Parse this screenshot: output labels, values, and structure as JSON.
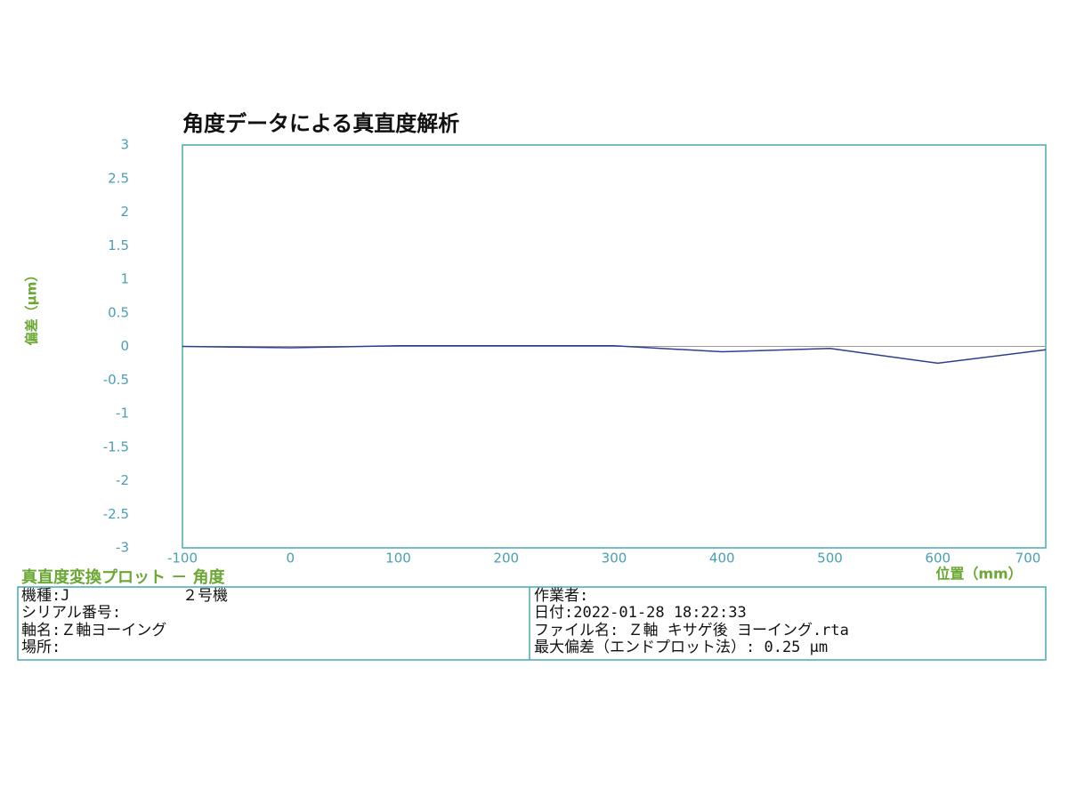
{
  "chart_data": {
    "type": "line",
    "title": "角度データによる真直度解析",
    "x_label": "位置（mm）",
    "y_label": "偏差（μm）",
    "x": [
      -100,
      0,
      100,
      200,
      300,
      400,
      500,
      600,
      700
    ],
    "series": [
      {
        "name": "角度",
        "color": "#2b3f8f",
        "values": [
          0,
          -0.02,
          0.01,
          0.01,
          0.01,
          -0.08,
          -0.03,
          -0.25,
          -0.05
        ]
      }
    ],
    "xlim": [
      -100,
      700
    ],
    "xticks": [
      -100,
      0,
      100,
      200,
      300,
      400,
      500,
      600,
      700
    ],
    "ylim": [
      -3,
      3
    ],
    "yticks": [
      3,
      2.5,
      2,
      1.5,
      1,
      0.5,
      0,
      -0.5,
      -1,
      -1.5,
      -2,
      -2.5,
      -3
    ],
    "grid": false,
    "zero_line": true,
    "legend": false
  },
  "caption": "真直度変換プロット － 角度",
  "info": {
    "left": [
      "機種:J",
      "シリアル番号:",
      "軸名:Ｚ軸ヨーイング",
      "場所:"
    ],
    "model": "２号機",
    "right": [
      "作業者:",
      "日付:2022-01-28 18:22:33",
      "ファイル名: Ｚ軸 キサゲ後 ヨーイング.rta",
      "最大偏差（エンドプロット法）: 0.25 μm"
    ]
  }
}
